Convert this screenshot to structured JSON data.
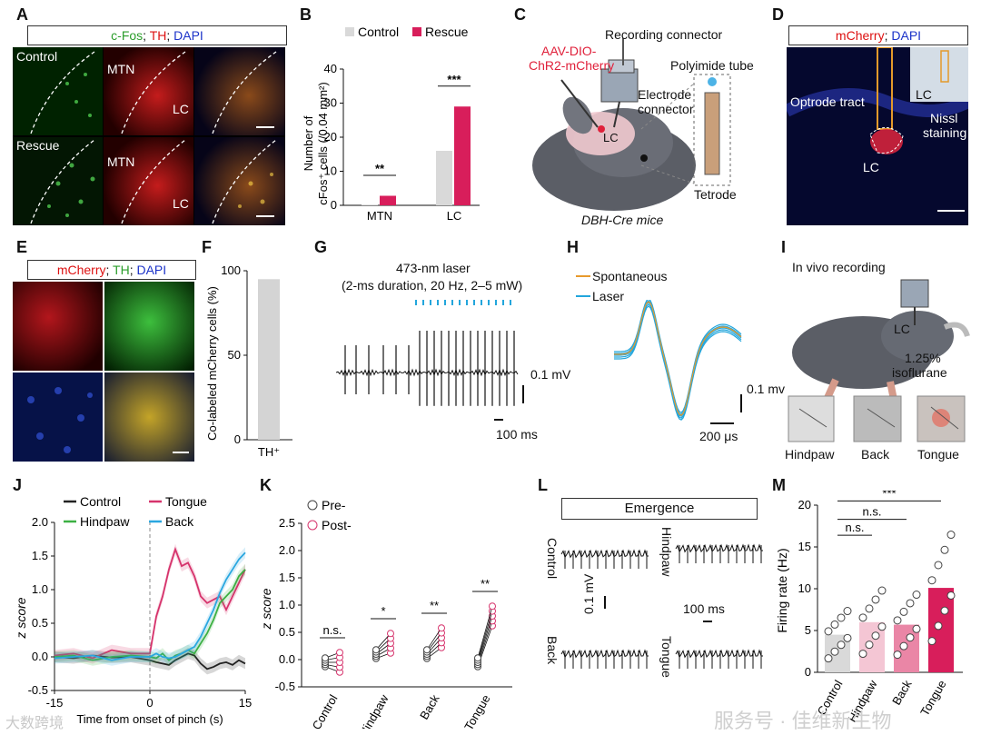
{
  "panels": {
    "A": {
      "label": "A",
      "legend": {
        "cfos": "c-Fos",
        "th": "TH",
        "dapi": "DAPI"
      },
      "row_control": "Control",
      "row_rescue": "Rescue",
      "mtn": "MTN",
      "lc": "LC"
    },
    "B": {
      "label": "B",
      "legend": [
        "Control",
        "Rescue"
      ],
      "ylabel_1": "Number of",
      "ylabel_2": "cFos⁺ cells (/0.04 mm²)",
      "sig": [
        "**",
        "***"
      ]
    },
    "C": {
      "label": "C",
      "virus_1": "AAV-DIO-",
      "virus_2": "ChR2-mCherry",
      "recording_connector": "Recording connector",
      "electrode_1": "Electrode",
      "electrode_2": "connector",
      "polyimide": "Polyimide tube",
      "tetrode": "Tetrode",
      "lc": "LC",
      "mice": "DBH-Cre mice"
    },
    "D": {
      "label": "D",
      "legend": {
        "mcherry": "mCherry",
        "dapi": "DAPI"
      },
      "optrode": "Optrode tract",
      "lc": "LC",
      "inset_lc": "LC",
      "nissl_1": "Nissl",
      "nissl_2": "staining"
    },
    "E": {
      "label": "E",
      "legend": {
        "mcherry": "mCherry",
        "th": "TH",
        "dapi": "DAPI"
      }
    },
    "F": {
      "label": "F",
      "ylabel": "Co-labeled mCherry cells (%)",
      "xtick": "TH⁺"
    },
    "G": {
      "label": "G",
      "title_1": "473-nm laser",
      "title_2": "(2-ms duration, 20 Hz, 2–5 mW)",
      "scale_v": "0.1 mV",
      "scale_t": "100 ms"
    },
    "H": {
      "label": "H",
      "legend": [
        "Spontaneous",
        "Laser"
      ],
      "scale_v": "0.1 mv",
      "scale_t": "200 μs"
    },
    "I": {
      "label": "I",
      "title": "In vivo recording",
      "lc": "LC",
      "iso_1": "1.25%",
      "iso_2": "isoflurane",
      "sites": [
        "Hindpaw",
        "Back",
        "Tongue"
      ]
    },
    "J": {
      "label": "J",
      "legend": [
        "Control",
        "Tongue",
        "Hindpaw",
        "Back"
      ],
      "ylabel": "z score",
      "xlabel": "Time from onset of pinch (s)"
    },
    "K": {
      "label": "K",
      "legend": [
        "Pre-",
        "Post-"
      ],
      "ylabel": "z score",
      "sig": [
        "n.s.",
        "*",
        "**",
        "**"
      ]
    },
    "L": {
      "label": "L",
      "title": "Emergence",
      "traces": [
        "Control",
        "Hindpaw",
        "Back",
        "Tongue"
      ],
      "scale_v": "0.1 mV",
      "scale_t": "100 ms"
    },
    "M": {
      "label": "M",
      "ylabel": "Firing rate (Hz)",
      "sig": [
        "***",
        "n.s.",
        "n.s."
      ]
    }
  },
  "watermark": {
    "left": "大数跨境",
    "right": "服务号 · 佳维新生物"
  },
  "colors": {
    "control_bar": "#d9d9d9",
    "rescue_bar": "#d81e5b",
    "control_line": "#222222",
    "tongue": "#d6336c",
    "hindpaw": "#3cb043",
    "back": "#2aa7e0",
    "spontaneous": "#e89a2c",
    "laser": "#23a6dc",
    "hindpaw_bar": "#f4c6d4",
    "back_bar": "#ea86a6"
  },
  "chart_data": [
    {
      "panel": "B",
      "type": "bar",
      "categories": [
        "MTN",
        "LC"
      ],
      "series": [
        {
          "name": "Control",
          "values": [
            0.2,
            16
          ]
        },
        {
          "name": "Rescue",
          "values": [
            2.8,
            29
          ]
        }
      ],
      "ylabel": "Number of cFos⁺ cells (/0.04 mm²)",
      "ylim": [
        0,
        40
      ],
      "yticks": [
        0,
        10,
        20,
        30,
        40
      ]
    },
    {
      "panel": "F",
      "type": "bar",
      "categories": [
        "TH⁺"
      ],
      "values": [
        95
      ],
      "ylabel": "Co-labeled mCherry cells (%)",
      "ylim": [
        0,
        100
      ],
      "yticks": [
        0,
        50,
        100
      ]
    },
    {
      "panel": "J",
      "type": "line",
      "x": [
        -15,
        -12,
        -9,
        -6,
        -3,
        0,
        1,
        2,
        3,
        4,
        5,
        6,
        7,
        8,
        9,
        10,
        11,
        12,
        13,
        14,
        15
      ],
      "series": [
        {
          "name": "Control",
          "values": [
            0,
            -0.02,
            0.02,
            -0.01,
            0,
            -0.05,
            -0.08,
            -0.1,
            -0.12,
            -0.05,
            0,
            0.05,
            0.02,
            -0.1,
            -0.18,
            -0.15,
            -0.1,
            -0.08,
            -0.12,
            -0.05,
            -0.1
          ]
        },
        {
          "name": "Tongue",
          "values": [
            0.02,
            0.05,
            -0.02,
            0.1,
            0.05,
            0.05,
            0.6,
            0.9,
            1.3,
            1.6,
            1.35,
            1.4,
            1.2,
            0.9,
            0.8,
            0.85,
            0.9,
            0.7,
            0.9,
            1.1,
            1.3
          ]
        },
        {
          "name": "Hindpaw",
          "values": [
            0,
            0.02,
            -0.05,
            0,
            0.02,
            0,
            -0.02,
            0.05,
            -0.05,
            0.02,
            0.05,
            0.1,
            0.05,
            0.2,
            0.35,
            0.55,
            0.8,
            0.9,
            1.0,
            1.2,
            1.3
          ]
        },
        {
          "name": "Back",
          "values": [
            -0.02,
            0,
            0.02,
            -0.05,
            0,
            0,
            0.05,
            0,
            -0.02,
            0,
            0.05,
            0.1,
            0.15,
            0.3,
            0.5,
            0.7,
            0.95,
            1.15,
            1.3,
            1.45,
            1.55
          ]
        }
      ],
      "ylabel": "z score",
      "xlabel": "Time from onset of pinch (s)",
      "xlim": [
        -15,
        15
      ],
      "xticks": [
        -15,
        0,
        15
      ],
      "ylim": [
        -0.5,
        2.0
      ],
      "yticks": [
        -0.5,
        0.0,
        0.5,
        1.0,
        1.5,
        2.0
      ]
    },
    {
      "panel": "K",
      "type": "scatter",
      "categories": [
        "Control",
        "Hindpaw",
        "Back",
        "Tongue"
      ],
      "series": [
        {
          "name": "Pre-",
          "values": [
            -0.05,
            0.1,
            0.1,
            -0.05
          ]
        },
        {
          "name": "Post-",
          "values": [
            -0.05,
            0.3,
            0.4,
            0.8
          ]
        }
      ],
      "ylabel": "z score",
      "ylim": [
        -0.5,
        2.5
      ],
      "yticks": [
        -0.5,
        0.0,
        0.5,
        1.0,
        1.5,
        2.0,
        2.5
      ]
    },
    {
      "panel": "M",
      "type": "bar",
      "categories": [
        "Control",
        "Hindpaw",
        "Back",
        "Tongue"
      ],
      "values": [
        4.5,
        6.0,
        5.7,
        10.1
      ],
      "ylabel": "Firing rate (Hz)",
      "ylim": [
        0,
        20
      ],
      "yticks": [
        0,
        5,
        10,
        15,
        20
      ]
    }
  ]
}
